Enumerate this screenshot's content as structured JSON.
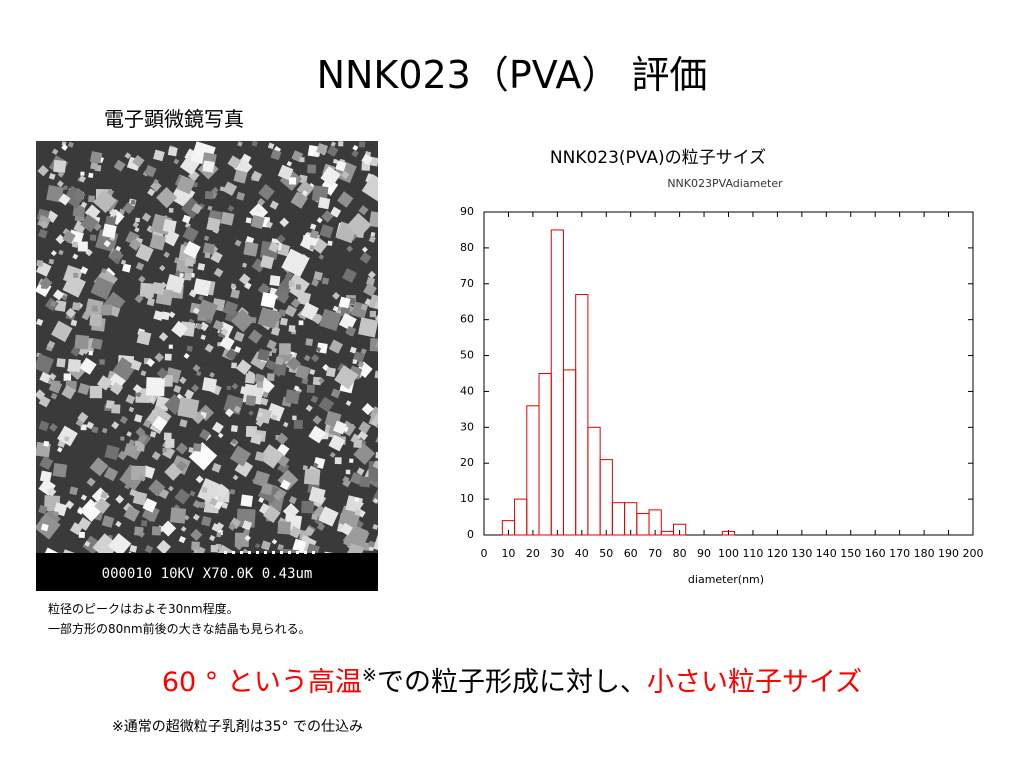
{
  "slide": {
    "title": "NNK023（PVA） 評価",
    "image_heading": "電子顕微鏡写真",
    "sem_label": "000010 10KV X70.0K 0.43um",
    "caption": [
      "粒径のピークはおよそ30nm程度。",
      "一部方形の80nm前後の大きな結晶も見られる。"
    ],
    "conclusion": [
      "60 ° という高温",
      "※",
      "での粒子形成に対し、",
      "小さい粒子サイズ"
    ],
    "footnote": "※通常の超微粒子乳剤は35° での仕込み"
  },
  "chart_data": {
    "type": "histogram",
    "title": "NNK023(PVA)の粒子サイズ",
    "subtitle": "NNK023PVAdiameter",
    "x_label": "diameter(nm)",
    "bins": [
      7.5,
      12.5,
      17.5,
      22.5,
      27.5,
      32.5,
      37.5,
      42.5,
      47.5,
      52.5,
      57.5,
      62.5,
      67.5,
      72.5,
      77.5,
      82.5,
      87.5,
      92.5,
      97.5,
      102.5
    ],
    "values": [
      4,
      10,
      36,
      45,
      85,
      46,
      67,
      30,
      21,
      9,
      9,
      6,
      7,
      1,
      3,
      0,
      0,
      0,
      1
    ],
    "color": "#e00000",
    "xlim": [
      0,
      200
    ],
    "xticks": [
      0,
      10,
      20,
      30,
      40,
      50,
      60,
      70,
      80,
      90,
      100,
      110,
      120,
      130,
      140,
      150,
      160,
      170,
      180,
      190,
      200
    ],
    "ylim": [
      0,
      90
    ],
    "yticks": [
      0,
      10,
      20,
      30,
      40,
      50,
      60,
      70,
      80,
      90
    ],
    "grid": false
  }
}
